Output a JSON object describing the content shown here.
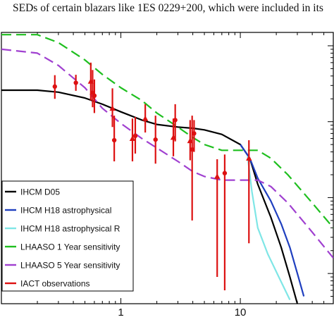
{
  "caption": "SEDs of certain blazars like 1ES 0229+200, which were included in its",
  "chart_data": {
    "type": "line",
    "x_scale": "log",
    "y_scale": "log",
    "xlim": [
      0.1,
      60
    ],
    "ylim": [
      0.004,
      15
    ],
    "x_ticks": [
      {
        "value": 1,
        "label": "1"
      },
      {
        "value": 10,
        "label": "10"
      }
    ],
    "series": [
      {
        "name": "IHCM D05",
        "color": "#000000",
        "dash": "solid",
        "x": [
          0.1,
          0.2,
          0.3,
          0.5,
          0.7,
          1.0,
          1.5,
          2,
          3,
          4,
          5,
          7,
          10,
          12,
          14,
          18,
          22,
          26,
          30
        ],
        "y": [
          2.6,
          2.6,
          2.45,
          2.05,
          1.7,
          1.35,
          1.05,
          0.92,
          0.85,
          0.82,
          0.78,
          0.68,
          0.5,
          0.33,
          0.15,
          0.055,
          0.022,
          0.009,
          0.004
        ]
      },
      {
        "name": "IHCM H18 astrophysical",
        "color": "#1f3fbf",
        "dash": "solid",
        "x": [
          10,
          12,
          14,
          18,
          22,
          26,
          30,
          34
        ],
        "y": [
          0.5,
          0.33,
          0.18,
          0.09,
          0.045,
          0.022,
          0.01,
          0.005
        ]
      },
      {
        "name": "IHCM H18 astrophysical R",
        "color": "#7fe6e6",
        "dash": "solid",
        "x": [
          11.5,
          12.5,
          14,
          17,
          21,
          26
        ],
        "y": [
          0.35,
          0.12,
          0.04,
          0.018,
          0.009,
          0.0045
        ]
      },
      {
        "name": "LHAASO 1 Year sensitivity",
        "color": "#1fbf1f",
        "dash": "dashed",
        "x": [
          0.1,
          0.2,
          0.3,
          0.5,
          0.7,
          1.0,
          1.5,
          2,
          3,
          4,
          5,
          7,
          10,
          14,
          18,
          25,
          40,
          60
        ],
        "y": [
          14,
          14,
          11,
          6.5,
          4.2,
          2.8,
          1.9,
          1.3,
          0.85,
          0.62,
          0.5,
          0.42,
          0.42,
          0.42,
          0.33,
          0.2,
          0.085,
          0.04
        ]
      },
      {
        "name": "LHAASO 5 Year sensitivity",
        "color": "#a040d0",
        "dash": "dashed",
        "x": [
          0.1,
          0.2,
          0.3,
          0.5,
          0.7,
          1.0,
          1.5,
          2,
          3,
          4,
          5,
          7,
          10,
          14,
          18,
          25,
          40,
          60
        ],
        "y": [
          9,
          8,
          5.5,
          2.8,
          1.5,
          0.95,
          0.6,
          0.45,
          0.3,
          0.22,
          0.19,
          0.17,
          0.17,
          0.17,
          0.14,
          0.085,
          0.035,
          0.016
        ]
      },
      {
        "name": "IACT observations",
        "color": "#dd1111",
        "dash": "none",
        "points": [
          {
            "x": 0.28,
            "y": 2.9,
            "lo": 2.0,
            "hi": 4.1,
            "marker": "circle"
          },
          {
            "x": 0.42,
            "y": 3.25,
            "lo": 2.55,
            "hi": 4.15,
            "marker": "circle"
          },
          {
            "x": 0.56,
            "y": 3.4,
            "lo": 1.9,
            "hi": 6.0,
            "marker": "triangle"
          },
          {
            "x": 0.58,
            "y": 2.45,
            "lo": 1.55,
            "hi": 4.8,
            "marker": "triangle"
          },
          {
            "x": 0.6,
            "y": 2.2,
            "lo": 1.3,
            "hi": 3.6,
            "marker": "circle"
          },
          {
            "x": 0.85,
            "y": 1.5,
            "lo": 0.85,
            "hi": 2.75,
            "marker": "triangle"
          },
          {
            "x": 0.88,
            "y": 0.57,
            "lo": 0.3,
            "hi": 1.2,
            "marker": "circle"
          },
          {
            "x": 1.25,
            "y": 0.6,
            "lo": 0.3,
            "hi": 1.1,
            "marker": "triangle"
          },
          {
            "x": 1.32,
            "y": 0.65,
            "lo": 0.38,
            "hi": 1.15,
            "marker": "circle"
          },
          {
            "x": 1.6,
            "y": 1.1,
            "lo": 0.72,
            "hi": 1.7,
            "marker": "triangle"
          },
          {
            "x": 1.95,
            "y": 0.58,
            "lo": 0.28,
            "hi": 1.2,
            "marker": "circle"
          },
          {
            "x": 2.75,
            "y": 0.62,
            "lo": 0.35,
            "hi": 1.1,
            "marker": "triangle"
          },
          {
            "x": 2.85,
            "y": 1.05,
            "lo": 0.55,
            "hi": 1.7,
            "marker": "circle"
          },
          {
            "x": 3.8,
            "y": 0.56,
            "lo": 0.31,
            "hi": 1.05,
            "marker": "triangle"
          },
          {
            "x": 3.95,
            "y": 0.43,
            "lo": 0.05,
            "hi": 1.2,
            "marker": "circle"
          },
          {
            "x": 4.1,
            "y": 0.7,
            "lo": 0.4,
            "hi": 1.05,
            "marker": "circle"
          },
          {
            "x": 6.4,
            "y": 0.19,
            "lo": 0.009,
            "hi": 0.32,
            "marker": "triangle"
          },
          {
            "x": 7.4,
            "y": 0.21,
            "lo": 0.006,
            "hi": 0.37,
            "marker": "circle"
          },
          {
            "x": 11.8,
            "y": 0.33,
            "lo": 0.025,
            "hi": 0.57,
            "marker": "triangle"
          }
        ]
      }
    ],
    "legend": {
      "position": "bottom-left"
    }
  }
}
